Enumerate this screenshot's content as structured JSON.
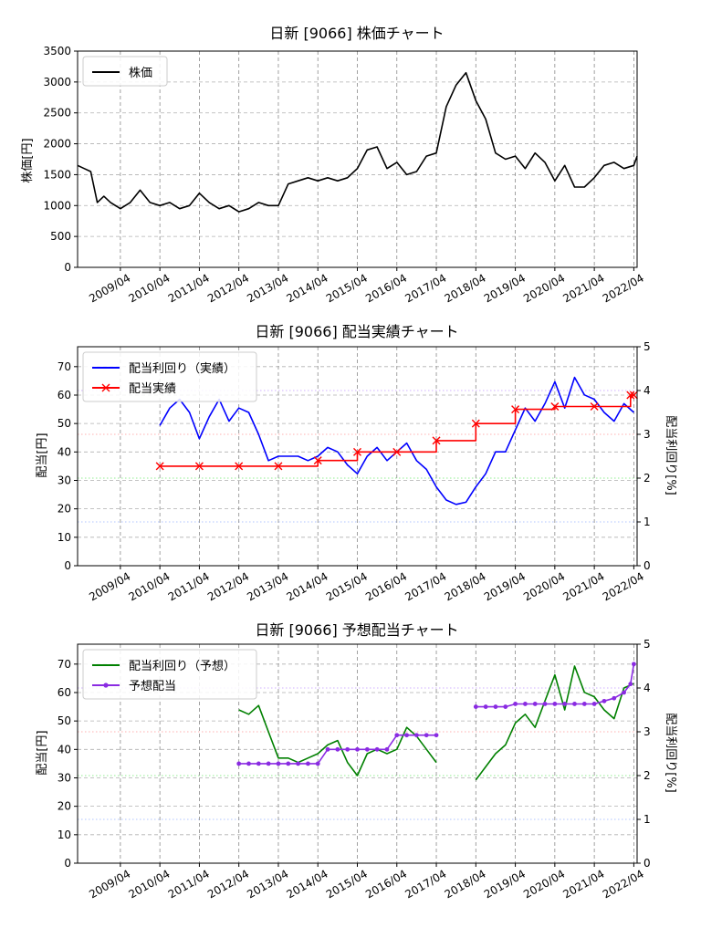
{
  "chart_data": [
    {
      "type": "line",
      "title": "日新 [9066]  株価チャート",
      "ylabel": "株価[円]",
      "ylim": [
        0,
        3500
      ],
      "yticks": [
        0,
        500,
        1000,
        1500,
        2000,
        2500,
        3000,
        3500
      ],
      "xlim": [
        "2008-03",
        "2022-05"
      ],
      "xticks": [
        "2009/04",
        "2010/04",
        "2011/04",
        "2012/04",
        "2013/04",
        "2014/04",
        "2015/04",
        "2016/04",
        "2017/04",
        "2018/04",
        "2019/04",
        "2020/04",
        "2021/04",
        "2022/04"
      ],
      "grid": true,
      "legend": "top-left",
      "series": [
        {
          "name": "株価",
          "color": "#000000",
          "x": [
            "2008-03",
            "2008-05",
            "2008-07",
            "2008-09",
            "2008-11",
            "2009-01",
            "2009-04",
            "2009-07",
            "2009-10",
            "2010-01",
            "2010-04",
            "2010-07",
            "2010-10",
            "2011-01",
            "2011-04",
            "2011-07",
            "2011-10",
            "2012-01",
            "2012-04",
            "2012-07",
            "2012-10",
            "2013-01",
            "2013-04",
            "2013-07",
            "2013-10",
            "2014-01",
            "2014-04",
            "2014-07",
            "2014-10",
            "2015-01",
            "2015-04",
            "2015-07",
            "2015-10",
            "2016-01",
            "2016-04",
            "2016-07",
            "2016-10",
            "2017-01",
            "2017-04",
            "2017-07",
            "2017-10",
            "2018-01",
            "2018-04",
            "2018-07",
            "2018-10",
            "2019-01",
            "2019-04",
            "2019-07",
            "2019-10",
            "2020-01",
            "2020-04",
            "2020-07",
            "2020-10",
            "2021-01",
            "2021-04",
            "2021-07",
            "2021-10",
            "2022-01",
            "2022-04",
            "2022-05"
          ],
          "values": [
            1650,
            1600,
            1550,
            1050,
            1150,
            1050,
            950,
            1050,
            1250,
            1050,
            1000,
            1050,
            950,
            1000,
            1200,
            1050,
            950,
            1000,
            900,
            950,
            1050,
            1000,
            1000,
            1350,
            1400,
            1450,
            1400,
            1450,
            1400,
            1450,
            1600,
            1900,
            1950,
            1600,
            1700,
            1500,
            1550,
            1800,
            1850,
            2600,
            2950,
            3150,
            2700,
            2400,
            1850,
            1750,
            1800,
            1600,
            1850,
            1700,
            1400,
            1650,
            1300,
            1300,
            1450,
            1650,
            1700,
            1600,
            1650,
            1800
          ]
        }
      ]
    },
    {
      "type": "line",
      "title": "日新 [9066]  配当実績チャート",
      "ylabel": "配当[円]",
      "ylabel_right": "配当利回り[%]",
      "ylim": [
        0,
        77
      ],
      "yticks": [
        0,
        10,
        20,
        30,
        40,
        50,
        60,
        70
      ],
      "ylim_right": [
        0,
        5
      ],
      "yticks_right": [
        0,
        1,
        2,
        3,
        4,
        5
      ],
      "xlim": [
        "2008-03",
        "2022-05"
      ],
      "xticks": [
        "2009/04",
        "2010/04",
        "2011/04",
        "2012/04",
        "2013/04",
        "2014/04",
        "2015/04",
        "2016/04",
        "2017/04",
        "2018/04",
        "2019/04",
        "2020/04",
        "2021/04",
        "2022/04"
      ],
      "grid": true,
      "legend": "top-left",
      "series": [
        {
          "name": "配当利回り（実績）",
          "color": "#0000ff",
          "axis": "right",
          "x": [
            "2010-04",
            "2010-07",
            "2010-10",
            "2011-01",
            "2011-04",
            "2011-07",
            "2011-10",
            "2012-01",
            "2012-04",
            "2012-07",
            "2012-10",
            "2013-01",
            "2013-04",
            "2013-07",
            "2013-10",
            "2014-01",
            "2014-04",
            "2014-07",
            "2014-10",
            "2015-01",
            "2015-04",
            "2015-07",
            "2015-10",
            "2016-01",
            "2016-04",
            "2016-07",
            "2016-10",
            "2017-01",
            "2017-04",
            "2017-07",
            "2017-10",
            "2018-01",
            "2018-04",
            "2018-07",
            "2018-10",
            "2019-01",
            "2019-04",
            "2019-07",
            "2019-10",
            "2020-01",
            "2020-04",
            "2020-07",
            "2020-10",
            "2021-01",
            "2021-04",
            "2021-07",
            "2021-10",
            "2022-01",
            "2022-04"
          ],
          "values": [
            3.2,
            3.6,
            3.8,
            3.5,
            2.9,
            3.4,
            3.8,
            3.3,
            3.6,
            3.5,
            3.0,
            2.4,
            2.5,
            2.5,
            2.5,
            2.4,
            2.5,
            2.7,
            2.6,
            2.3,
            2.1,
            2.5,
            2.7,
            2.4,
            2.6,
            2.8,
            2.4,
            2.2,
            1.8,
            1.5,
            1.4,
            1.45,
            1.8,
            2.1,
            2.6,
            2.6,
            3.1,
            3.6,
            3.3,
            3.7,
            4.2,
            3.6,
            4.3,
            3.9,
            3.8,
            3.5,
            3.3,
            3.7,
            3.5
          ]
        },
        {
          "name": "配当実績",
          "color": "#ff0000",
          "axis": "left",
          "step": true,
          "x": [
            "2010-04",
            "2011-04",
            "2012-04",
            "2013-04",
            "2014-04",
            "2015-04",
            "2016-04",
            "2017-04",
            "2018-04",
            "2019-04",
            "2020-04",
            "2021-04",
            "2022-03",
            "2022-04"
          ],
          "values": [
            35,
            35,
            35,
            35,
            37,
            40,
            40,
            44,
            50,
            55,
            56,
            56,
            60,
            60
          ]
        }
      ]
    },
    {
      "type": "line",
      "title": "日新 [9066]  予想配当チャート",
      "ylabel": "配当[円]",
      "ylabel_right": "配当利回り[%]",
      "ylim": [
        0,
        77
      ],
      "yticks": [
        0,
        10,
        20,
        30,
        40,
        50,
        60,
        70
      ],
      "ylim_right": [
        0,
        5
      ],
      "yticks_right": [
        0,
        1,
        2,
        3,
        4,
        5
      ],
      "xlim": [
        "2008-03",
        "2022-05"
      ],
      "xticks": [
        "2009/04",
        "2010/04",
        "2011/04",
        "2012/04",
        "2013/04",
        "2014/04",
        "2015/04",
        "2016/04",
        "2017/04",
        "2018/04",
        "2019/04",
        "2020/04",
        "2021/04",
        "2022/04"
      ],
      "grid": true,
      "legend": "top-left",
      "series": [
        {
          "name": "配当利回り（予想）",
          "color": "#008000",
          "axis": "right",
          "segments": [
            {
              "x": [
                "2012-04",
                "2012-07",
                "2012-10",
                "2013-01",
                "2013-04",
                "2013-07",
                "2013-10",
                "2014-01",
                "2014-04",
                "2014-07",
                "2014-10",
                "2015-01",
                "2015-04",
                "2015-07",
                "2015-10",
                "2016-01",
                "2016-04",
                "2016-07",
                "2016-10",
                "2017-01",
                "2017-04"
              ],
              "values": [
                3.5,
                3.4,
                3.6,
                3.0,
                2.4,
                2.4,
                2.3,
                2.4,
                2.5,
                2.7,
                2.8,
                2.3,
                2.0,
                2.5,
                2.6,
                2.5,
                2.6,
                3.1,
                2.9,
                2.6,
                2.3
              ]
            },
            {
              "x": [
                "2018-04",
                "2018-07",
                "2018-10",
                "2019-01",
                "2019-04",
                "2019-07",
                "2019-10",
                "2020-01",
                "2020-04",
                "2020-07",
                "2020-10",
                "2021-01",
                "2021-04",
                "2021-07",
                "2021-10",
                "2022-01",
                "2022-04"
              ],
              "values": [
                1.9,
                2.2,
                2.5,
                2.7,
                3.2,
                3.4,
                3.1,
                3.7,
                4.3,
                3.5,
                4.5,
                3.9,
                3.8,
                3.5,
                3.3,
                4.0,
                4.1
              ]
            }
          ]
        },
        {
          "name": "予想配当",
          "color": "#8a2be2",
          "axis": "left",
          "segments": [
            {
              "x": [
                "2012-04",
                "2012-07",
                "2012-10",
                "2013-01",
                "2013-04",
                "2013-07",
                "2013-10",
                "2014-01",
                "2014-04",
                "2014-07",
                "2014-10",
                "2015-01",
                "2015-04",
                "2015-07",
                "2015-10",
                "2016-01",
                "2016-04",
                "2016-07",
                "2016-10",
                "2017-01",
                "2017-04"
              ],
              "values": [
                35,
                35,
                35,
                35,
                35,
                35,
                35,
                35,
                35,
                40,
                40,
                40,
                40,
                40,
                40,
                40,
                45,
                45,
                45,
                45,
                45
              ]
            },
            {
              "x": [
                "2018-04",
                "2018-07",
                "2018-10",
                "2019-01",
                "2019-04",
                "2019-07",
                "2019-10",
                "2020-01",
                "2020-04",
                "2020-07",
                "2020-10",
                "2021-01",
                "2021-04",
                "2021-07",
                "2021-10",
                "2022-01",
                "2022-03",
                "2022-04"
              ],
              "values": [
                55,
                55,
                55,
                55,
                56,
                56,
                56,
                56,
                56,
                56,
                56,
                56,
                56,
                57,
                58,
                60,
                63,
                70
              ]
            }
          ]
        }
      ]
    }
  ]
}
